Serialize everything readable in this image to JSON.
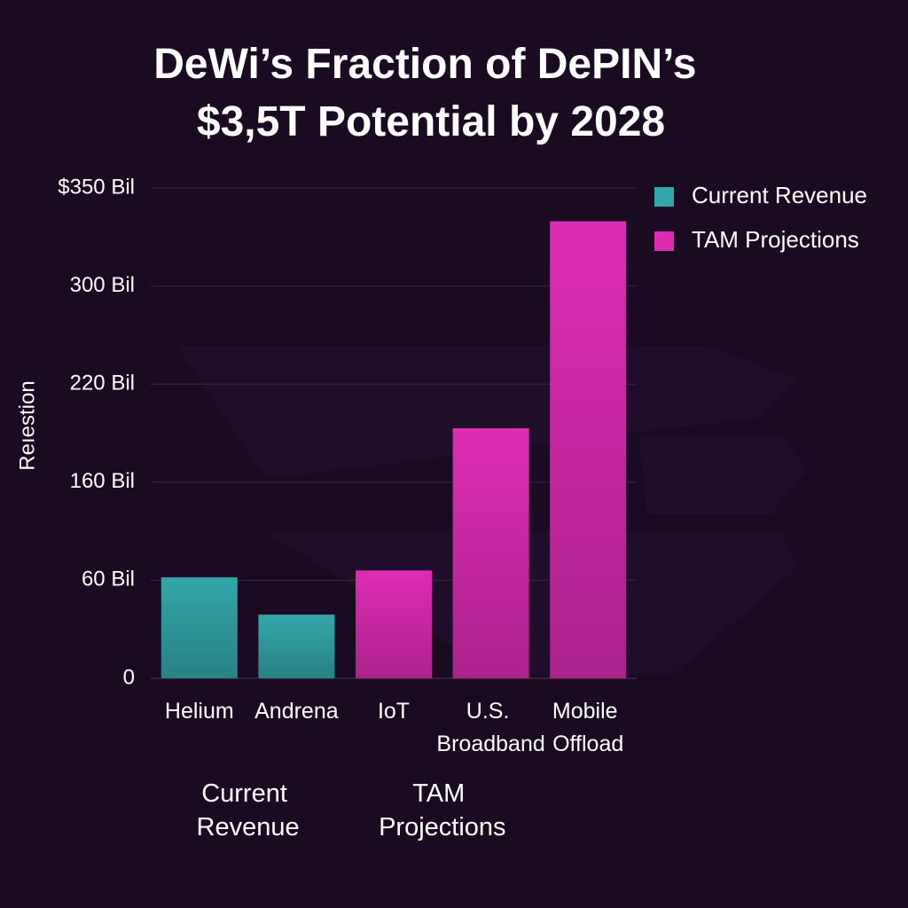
{
  "chart_data": {
    "type": "bar",
    "title": "DeWi’s Fraction of DePIN’s $3,5T Potential by 2028",
    "y_label": "Reıestion",
    "categories": [
      "Helium",
      "Andrena",
      "IoT",
      "U.S. Broadband",
      "Mobile Offload"
    ],
    "series": [
      {
        "name": "Current Revenue",
        "color": "#33a6aa",
        "values": [
          63,
          39,
          null,
          null,
          null
        ]
      },
      {
        "name": "TAM Projections",
        "color": "#dc2cb4",
        "values": [
          null,
          null,
          70,
          193,
          333
        ]
      }
    ],
    "groups": [
      {
        "label": "Current Revenue",
        "categories": [
          0,
          1
        ]
      },
      {
        "label": "TAM Projections",
        "categories": [
          2,
          3
        ]
      }
    ],
    "ylim": [
      0,
      350
    ],
    "yticks": [
      0,
      {
        "value": 60,
        "label": "60 Bil"
      },
      {
        "value": 160,
        "label": "160 Bil"
      },
      {
        "value": 220,
        "label": "220 Bil"
      },
      {
        "value": 300,
        "label": "300 Bil"
      },
      {
        "value": 350,
        "label": "$350 Bil"
      }
    ],
    "grid": true,
    "legend": "top-right"
  }
}
